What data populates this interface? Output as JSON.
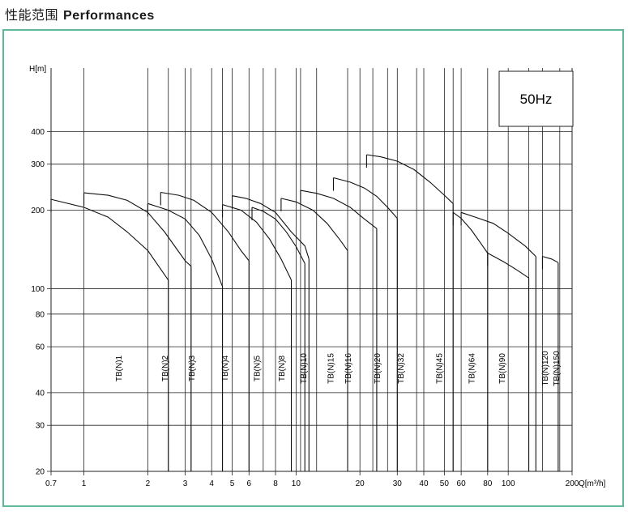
{
  "page": {
    "title_zh": "性能范围",
    "title_en": "Performances"
  },
  "chart_data": {
    "type": "line",
    "xlabel": "Q[m³/h]",
    "ylabel": "H[m]",
    "x_scale": "log",
    "y_scale": "log",
    "xlim": [
      0.7,
      200
    ],
    "ylim": [
      20,
      700
    ],
    "grid": true,
    "x_ticks": [
      0.7,
      1,
      2,
      3,
      4,
      5,
      6,
      8,
      10,
      20,
      30,
      40,
      50,
      60,
      80,
      100,
      200
    ],
    "x_tick_labels": [
      "0.7",
      "1",
      "2",
      "3",
      "4",
      "5",
      "6",
      "8",
      "10",
      "20",
      "30",
      "40",
      "50",
      "60",
      "80",
      "100",
      "200"
    ],
    "y_ticks": [
      20,
      30,
      40,
      60,
      80,
      100,
      200,
      300,
      400
    ],
    "y_tick_labels": [
      "20",
      "30",
      "40",
      "60",
      "80",
      "100",
      "200",
      "300",
      "400"
    ],
    "annotation": "50Hz",
    "series": [
      {
        "name": "TB(N)1",
        "curves": [
          [
            [
              1.0,
              233
            ],
            [
              1.3,
              228
            ],
            [
              1.6,
              218
            ],
            [
              2.0,
              196
            ],
            [
              2.4,
              165
            ],
            [
              3.0,
              128
            ],
            [
              3.2,
              122
            ]
          ],
          [
            [
              0.7,
              220
            ],
            [
              1.0,
              205
            ],
            [
              1.3,
              188
            ],
            [
              1.6,
              165
            ],
            [
              2.0,
              140
            ],
            [
              2.5,
              108
            ]
          ]
        ],
        "q_min": 1.0,
        "q_max": 3.2,
        "label_q": 1.45
      },
      {
        "name": "TB(N)2",
        "curves": [
          [
            [
              2.3,
              234
            ],
            [
              2.8,
              228
            ],
            [
              3.3,
              218
            ],
            [
              4.0,
              196
            ],
            [
              4.8,
              165
            ],
            [
              5.5,
              140
            ],
            [
              6.0,
              128
            ]
          ],
          [
            [
              2.0,
              212
            ],
            [
              2.5,
              200
            ],
            [
              3.0,
              185
            ],
            [
              3.5,
              160
            ],
            [
              4.0,
              130
            ],
            [
              4.5,
              102
            ]
          ]
        ],
        "q_min": 2.3,
        "q_max": 4.5,
        "label_q": 2.4
      },
      {
        "name": "TB(N)3",
        "curves": [],
        "q_min": 3.2,
        "q_max": 4.5,
        "label_q": 3.2
      },
      {
        "name": "TB(N)4",
        "curves": [
          [
            [
              5.0,
              227
            ],
            [
              5.8,
              222
            ],
            [
              6.8,
              212
            ],
            [
              8.0,
              196
            ],
            [
              9.5,
              165
            ],
            [
              11.0,
              146
            ],
            [
              11.5,
              130
            ]
          ],
          [
            [
              4.5,
              210
            ],
            [
              5.5,
              200
            ],
            [
              6.5,
              180
            ],
            [
              7.5,
              155
            ],
            [
              8.5,
              130
            ],
            [
              9.5,
              108
            ]
          ]
        ],
        "q_min": 5.0,
        "q_max": 7.0,
        "label_q": 4.6
      },
      {
        "name": "TB(N)5",
        "curves": [
          [
            [
              6.2,
              205
            ],
            [
              7.0,
              198
            ],
            [
              8.0,
              185
            ],
            [
              9.0,
              165
            ],
            [
              10.0,
              145
            ],
            [
              11.0,
              125
            ]
          ]
        ],
        "q_min": 6.2,
        "q_max": 8.0,
        "label_q": 6.5
      },
      {
        "name": "TB(N)8",
        "curves": [
          [
            [
              8.5,
              222
            ],
            [
              10.0,
              215
            ],
            [
              12.0,
              200
            ],
            [
              14.0,
              178
            ],
            [
              16.0,
              155
            ],
            [
              17.5,
              140
            ]
          ]
        ],
        "q_min": 8.5,
        "q_max": 10.5,
        "label_q": 8.5
      },
      {
        "name": "TB(N)10",
        "curves": [
          [
            [
              10.5,
              238
            ],
            [
              12.5,
              232
            ],
            [
              15.0,
              222
            ],
            [
              18.0,
              205
            ],
            [
              21.0,
              185
            ],
            [
              24.0,
              170
            ]
          ]
        ],
        "q_min": 10.5,
        "q_max": 12.5,
        "label_q": 10.8
      },
      {
        "name": "TB(N)15",
        "curves": [
          [
            [
              15.0,
              266
            ],
            [
              18.0,
              256
            ],
            [
              21.0,
              243
            ],
            [
              24.0,
              226
            ],
            [
              27.0,
              205
            ],
            [
              30.0,
              186
            ]
          ]
        ],
        "q_min": 15.0,
        "q_max": 17.5,
        "label_q": 14.5
      },
      {
        "name": "TB(N)16",
        "curves": [],
        "q_min": 17.5,
        "q_max": 20,
        "label_q": 17.5
      },
      {
        "name": "TB(N)20",
        "curves": [
          [
            [
              21.5,
              326
            ],
            [
              25.0,
              320
            ],
            [
              30.0,
              308
            ],
            [
              36.0,
              286
            ],
            [
              43.0,
              255
            ],
            [
              50.0,
              228
            ],
            [
              55.0,
              212
            ]
          ]
        ],
        "q_min": 21.5,
        "q_max": 37,
        "label_q": 24
      },
      {
        "name": "TB(N)32",
        "curves": [],
        "q_min": 27,
        "q_max": 37,
        "label_q": 31
      },
      {
        "name": "TB(N)45",
        "curves": [],
        "q_min": 37,
        "q_max": 55,
        "label_q": 47
      },
      {
        "name": "TB(N)64",
        "curves": [
          [
            [
              55.0,
              196
            ],
            [
              60.0,
              186
            ],
            [
              67.0,
              168
            ],
            [
              74.0,
              150
            ],
            [
              80.0,
              137
            ]
          ],
          [
            [
              60.0,
              196
            ],
            [
              70.0,
              188
            ],
            [
              85.0,
              178
            ],
            [
              100.0,
              163
            ],
            [
              120.0,
              146
            ],
            [
              135.0,
              133
            ]
          ]
        ],
        "q_min": 55,
        "q_max": 85,
        "label_q": 67
      },
      {
        "name": "TB(N)90",
        "curves": [
          [
            [
              80.0,
              137
            ],
            [
              95.0,
              127
            ],
            [
              110.0,
              118
            ],
            [
              125.0,
              110
            ]
          ]
        ],
        "q_min": 80,
        "q_max": 125,
        "label_q": 93
      },
      {
        "name": "TB(N)120",
        "curves": [],
        "q_min": 145,
        "q_max": 165,
        "label_q": 148
      },
      {
        "name": "TB(N)150",
        "curves": [
          [
            [
              145.0,
              133
            ],
            [
              160.0,
              130
            ],
            [
              172.0,
              126
            ]
          ]
        ],
        "q_min": 160,
        "q_max": 175,
        "label_q": 168
      }
    ]
  }
}
